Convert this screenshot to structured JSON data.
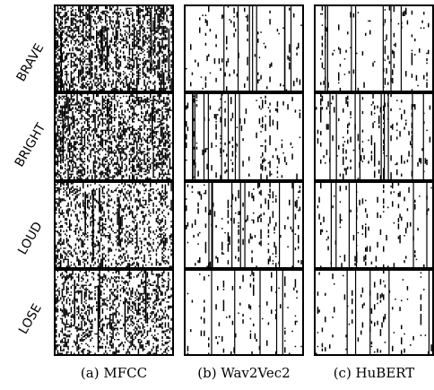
{
  "figure": {
    "row_labels": [
      "BRAVE",
      "BRIGHT",
      "LOUD",
      "LOSE"
    ],
    "column_captions": [
      "(a) MFCC",
      "(b) Wav2Vec2",
      "(c) HuBERT"
    ],
    "ink_color": "#000000",
    "background_color": "#ffffff",
    "columns": [
      {
        "name": "MFCC",
        "pattern": "dense-noise",
        "rows": [
          {
            "label": "BRAVE",
            "density": 0.34,
            "solid_columns": 6
          },
          {
            "label": "BRIGHT",
            "density": 0.3,
            "solid_columns": 4
          },
          {
            "label": "LOUD",
            "density": 0.24,
            "solid_columns": 4
          },
          {
            "label": "LOSE",
            "density": 0.22,
            "solid_columns": 5
          }
        ]
      },
      {
        "name": "Wav2Vec2",
        "pattern": "sparse-with-vertical-lines",
        "rows": [
          {
            "label": "BRAVE",
            "density": 0.03,
            "solid_columns": 8
          },
          {
            "label": "BRIGHT",
            "density": 0.04,
            "solid_columns": 9
          },
          {
            "label": "LOUD",
            "density": 0.04,
            "solid_columns": 8
          },
          {
            "label": "LOSE",
            "density": 0.03,
            "solid_columns": 5
          }
        ]
      },
      {
        "name": "HuBERT",
        "pattern": "sparse-with-vertical-lines",
        "rows": [
          {
            "label": "BRAVE",
            "density": 0.03,
            "solid_columns": 7
          },
          {
            "label": "BRIGHT",
            "density": 0.04,
            "solid_columns": 9
          },
          {
            "label": "LOUD",
            "density": 0.03,
            "solid_columns": 6
          },
          {
            "label": "LOSE",
            "density": 0.02,
            "solid_columns": 5
          }
        ]
      }
    ]
  }
}
